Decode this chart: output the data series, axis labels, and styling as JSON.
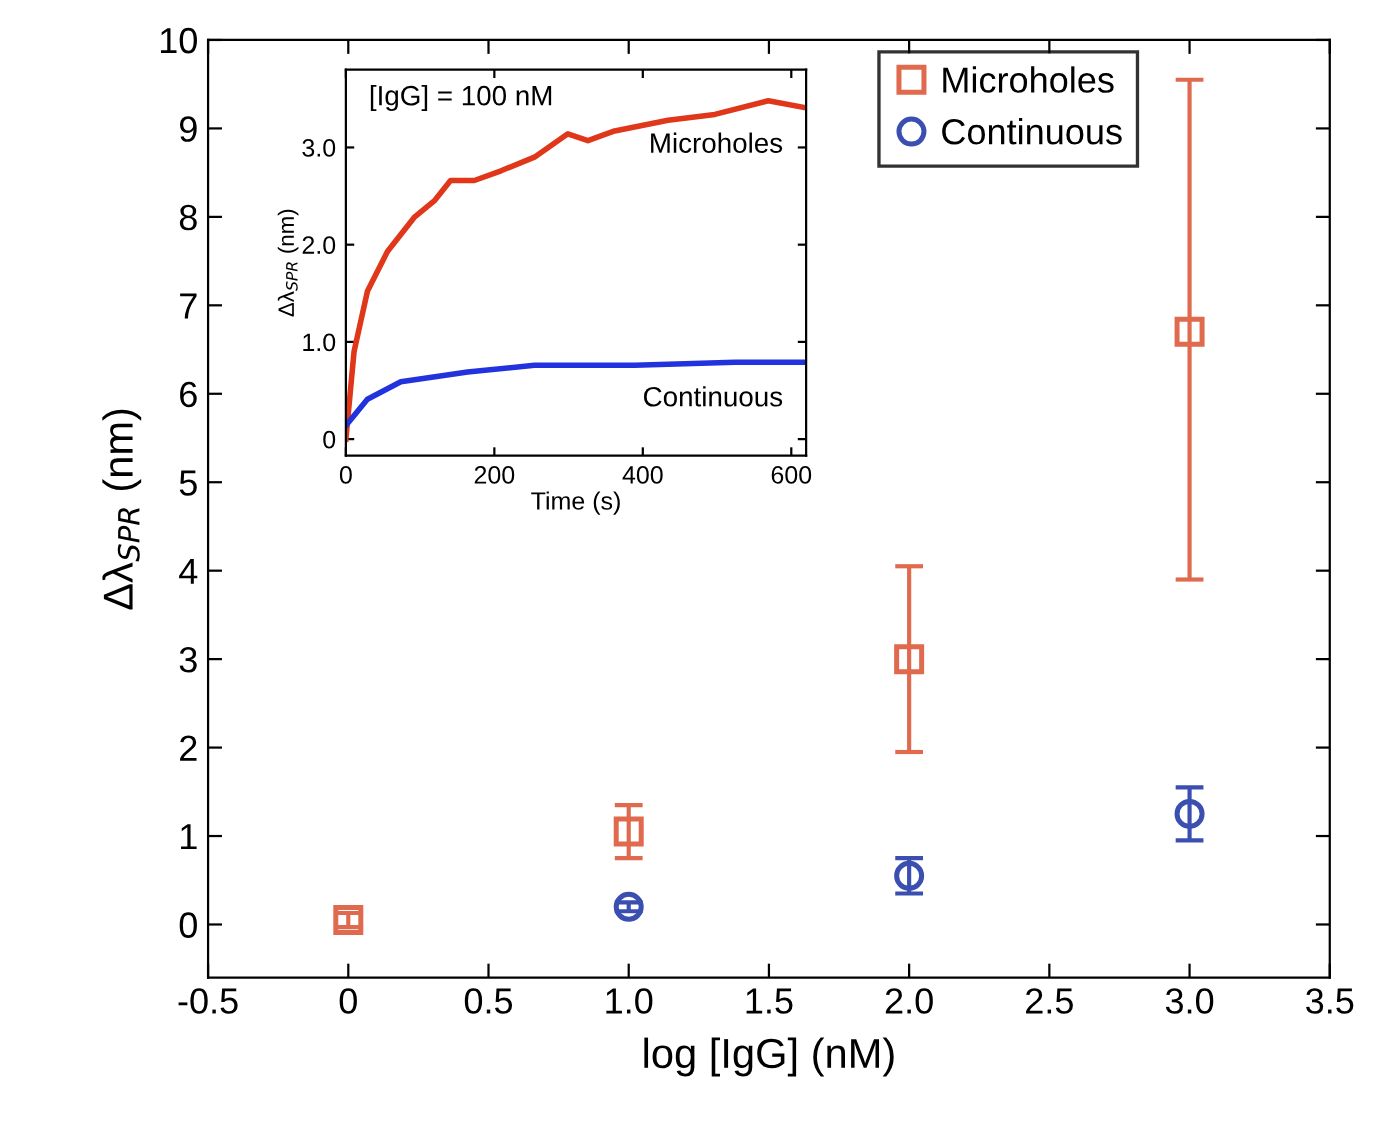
{
  "chart_data": [
    {
      "type": "scatter",
      "xlabel": "log [IgG] (nM)",
      "ylabel": "Δλ$_{SPR}$ (nm)",
      "x": [
        0,
        1,
        2,
        3
      ],
      "xlim": [
        -0.5,
        3.5
      ],
      "xticks": [
        -0.5,
        0,
        0.5,
        {
          "value": 1,
          "label": "1.0"
        },
        1.5,
        {
          "value": 2,
          "label": "2.0"
        },
        2.5,
        {
          "value": 3,
          "label": "3.0"
        },
        3.5
      ],
      "ylim": [
        -0.6,
        10
      ],
      "yticks": [
        0,
        1,
        2,
        3,
        4,
        5,
        6,
        7,
        8,
        9,
        10
      ],
      "legend": "top right",
      "grid": false,
      "series": [
        {
          "name": "Microholes",
          "color": "#e06a4e",
          "marker": "square",
          "values": [
            0.05,
            1.05,
            3.0,
            6.7
          ],
          "errors": [
            0.08,
            0.3,
            1.05,
            [
              3.9,
              9.55
            ]
          ]
        },
        {
          "name": "Continuous",
          "color": "#3a4fb0",
          "marker": "circle",
          "values": [
            null,
            0.2,
            0.55,
            1.25
          ],
          "errors": [
            null,
            0.05,
            0.2,
            0.3
          ]
        }
      ]
    },
    {
      "type": "line",
      "xlabel": "Time (s)",
      "ylabel": "Δλ$_{SPR}$ (nm)",
      "xlim": [
        0,
        620
      ],
      "xticks": [
        0,
        200,
        400,
        600
      ],
      "ylim": [
        -0.17,
        3.8
      ],
      "yticks": [
        0,
        {
          "value": 1,
          "label": "1.0"
        },
        {
          "value": 2,
          "label": "2.0"
        },
        {
          "value": 3,
          "label": "3.0"
        }
      ],
      "legend": false,
      "grid": false,
      "marker": "none",
      "annotations": [
        "[IgG] = 100 nM"
      ],
      "series": [
        {
          "name": "Microholes",
          "color": "#e0361a",
          "x": [
            0,
            11,
            29,
            56,
            92,
            119,
            141,
            173,
            209,
            254,
            299,
            326,
            362,
            434,
            497,
            569,
            618
          ],
          "values": [
            0,
            0.9,
            1.52,
            1.93,
            2.28,
            2.45,
            2.66,
            2.66,
            2.76,
            2.9,
            3.14,
            3.07,
            3.17,
            3.28,
            3.34,
            3.48,
            3.41
          ]
        },
        {
          "name": "Continuous",
          "color": "#2233dd",
          "x": [
            0,
            29,
            74,
            164,
            254,
            389,
            524,
            618
          ],
          "values": [
            0.14,
            0.41,
            0.59,
            0.69,
            0.76,
            0.76,
            0.79,
            0.79
          ]
        }
      ]
    }
  ]
}
